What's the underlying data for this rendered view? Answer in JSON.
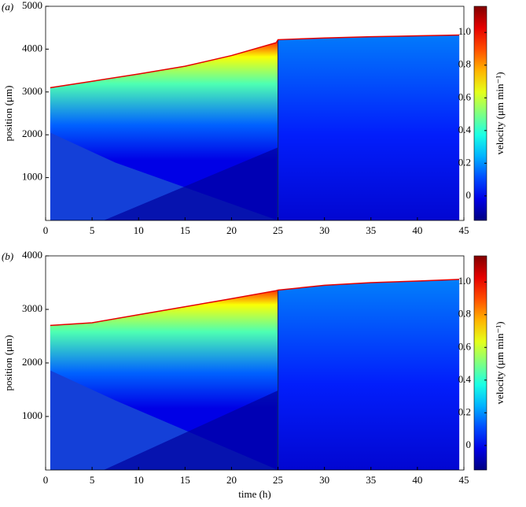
{
  "chart_data": [
    {
      "type": "heatmap",
      "panel_label": "(a)",
      "ylabel": "position (μm)",
      "xlim": [
        0,
        45
      ],
      "xticks": [
        0,
        5,
        10,
        15,
        20,
        25,
        30,
        35,
        40,
        45
      ],
      "ylim": [
        0,
        5000
      ],
      "yticks": [
        1000,
        2000,
        3000,
        4000,
        5000
      ],
      "x": [
        0.5,
        5,
        10,
        15,
        20,
        24.8,
        25,
        30,
        35,
        40,
        44.5
      ],
      "values": [
        3100,
        3250,
        3420,
        3600,
        3850,
        4150,
        4220,
        4260,
        4290,
        4310,
        4330
      ],
      "colorbar": {
        "label": "velocity (μm min⁻¹)",
        "lim": [
          -0.15,
          1.16
        ],
        "ticks": [
          0,
          0.2,
          0.4,
          0.6,
          0.8,
          {
            "value": 1,
            "label": "1.0"
          }
        ]
      }
    },
    {
      "type": "heatmap",
      "panel_label": "(b)",
      "ylabel": "position (μm)",
      "xlabel": "time (h)",
      "xlim": [
        0,
        45
      ],
      "xticks": [
        0,
        5,
        10,
        15,
        20,
        25,
        30,
        35,
        40,
        45
      ],
      "ylim": [
        0,
        4000
      ],
      "yticks": [
        1000,
        2000,
        3000,
        4000
      ],
      "x": [
        0.5,
        5,
        10,
        15,
        20,
        24.8,
        25,
        30,
        35,
        40,
        44.5
      ],
      "values": [
        2700,
        2750,
        2900,
        3050,
        3200,
        3350,
        3360,
        3450,
        3500,
        3530,
        3560
      ],
      "colorbar": {
        "label": "velocity (μm min⁻¹)",
        "lim": [
          -0.15,
          1.16
        ],
        "ticks": [
          0,
          0.2,
          0.4,
          0.6,
          0.8,
          {
            "value": 1,
            "label": "1.0"
          }
        ]
      }
    }
  ]
}
